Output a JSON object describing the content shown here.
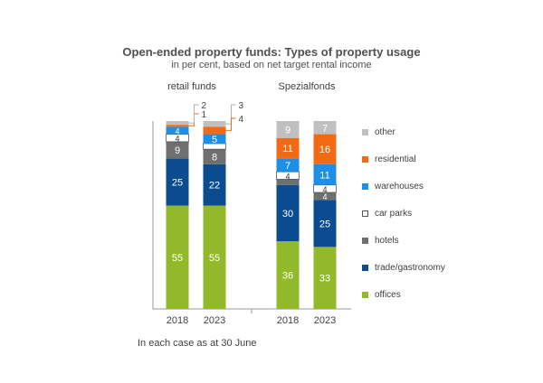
{
  "chart_data": {
    "type": "bar",
    "stacked": true,
    "title": "Open-ended property funds: Types of property usage",
    "subtitle": "in per cent, based on net target rental income",
    "footnote": "In each case as at 30 June",
    "ylim": [
      0,
      100
    ],
    "groups": [
      {
        "name": "retail funds",
        "categories": [
          "2018",
          "2023"
        ]
      },
      {
        "name": "Spezialfonds",
        "categories": [
          "2018",
          "2023"
        ]
      }
    ],
    "categories": [
      "2018",
      "2023",
      "2018",
      "2023"
    ],
    "series": [
      {
        "name": "offices",
        "color": "#92b92a",
        "values": [
          55,
          55,
          36,
          33
        ]
      },
      {
        "name": "trade/gastronomy",
        "color": "#0b4b8f",
        "values": [
          25,
          22,
          30,
          25
        ]
      },
      {
        "name": "hotels",
        "color": "#6f6f6f",
        "values": [
          9,
          8,
          3,
          4
        ]
      },
      {
        "name": "car parks",
        "color": "#ffffff",
        "values": [
          4,
          3,
          4,
          4
        ]
      },
      {
        "name": "warehouses",
        "color": "#1e8fe6",
        "values": [
          4,
          5,
          7,
          11
        ]
      },
      {
        "name": "residential",
        "color": "#f26a13",
        "values": [
          1,
          4,
          11,
          16
        ]
      },
      {
        "name": "other",
        "color": "#c0c0c0",
        "values": [
          2,
          3,
          9,
          7
        ]
      }
    ],
    "callouts": [
      {
        "bar": 0,
        "series": "residential",
        "label": "1"
      },
      {
        "bar": 0,
        "series": "other",
        "label": "2"
      },
      {
        "bar": 1,
        "series": "other",
        "label": "3"
      },
      {
        "bar": 1,
        "series": "residential",
        "label": "4"
      }
    ],
    "legend_position": "right"
  }
}
